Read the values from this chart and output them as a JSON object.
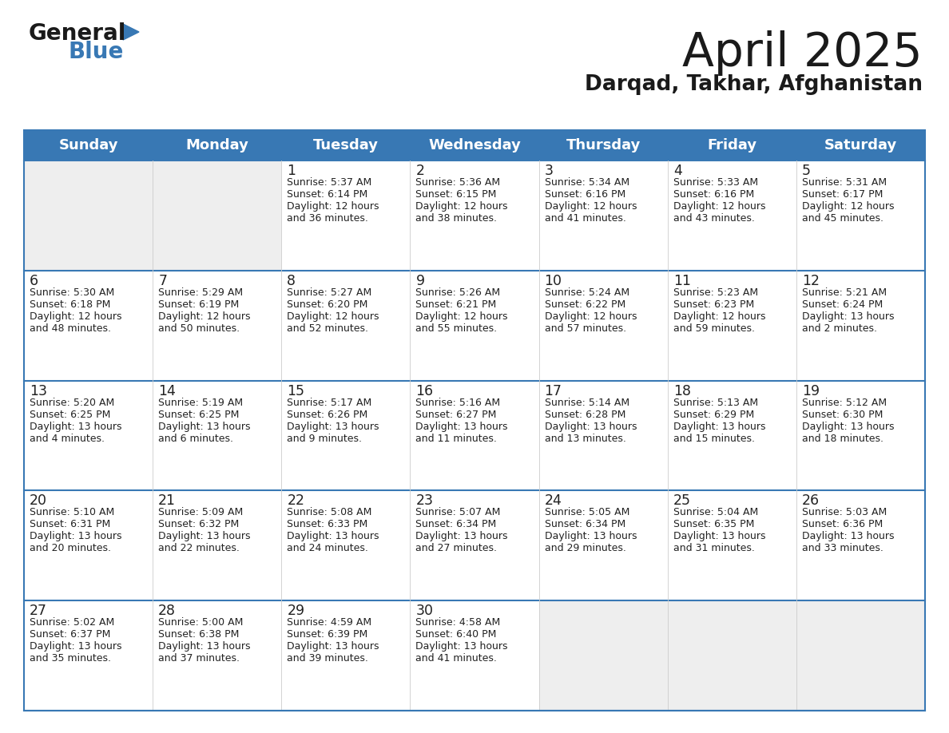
{
  "title": "April 2025",
  "subtitle": "Darqad, Takhar, Afghanistan",
  "header_color": "#3878b4",
  "header_text_color": "#ffffff",
  "cell_bg_white": "#ffffff",
  "cell_bg_gray": "#eeeeee",
  "border_color": "#3878b4",
  "text_color": "#222222",
  "logo_black": "#1a1a1a",
  "logo_blue": "#3878b4",
  "days_of_week": [
    "Sunday",
    "Monday",
    "Tuesday",
    "Wednesday",
    "Thursday",
    "Friday",
    "Saturday"
  ],
  "calendar": [
    [
      {
        "day": "",
        "sunrise": "",
        "sunset": "",
        "daylight1": "",
        "daylight2": ""
      },
      {
        "day": "",
        "sunrise": "",
        "sunset": "",
        "daylight1": "",
        "daylight2": ""
      },
      {
        "day": "1",
        "sunrise": "Sunrise: 5:37 AM",
        "sunset": "Sunset: 6:14 PM",
        "daylight1": "Daylight: 12 hours",
        "daylight2": "and 36 minutes."
      },
      {
        "day": "2",
        "sunrise": "Sunrise: 5:36 AM",
        "sunset": "Sunset: 6:15 PM",
        "daylight1": "Daylight: 12 hours",
        "daylight2": "and 38 minutes."
      },
      {
        "day": "3",
        "sunrise": "Sunrise: 5:34 AM",
        "sunset": "Sunset: 6:16 PM",
        "daylight1": "Daylight: 12 hours",
        "daylight2": "and 41 minutes."
      },
      {
        "day": "4",
        "sunrise": "Sunrise: 5:33 AM",
        "sunset": "Sunset: 6:16 PM",
        "daylight1": "Daylight: 12 hours",
        "daylight2": "and 43 minutes."
      },
      {
        "day": "5",
        "sunrise": "Sunrise: 5:31 AM",
        "sunset": "Sunset: 6:17 PM",
        "daylight1": "Daylight: 12 hours",
        "daylight2": "and 45 minutes."
      }
    ],
    [
      {
        "day": "6",
        "sunrise": "Sunrise: 5:30 AM",
        "sunset": "Sunset: 6:18 PM",
        "daylight1": "Daylight: 12 hours",
        "daylight2": "and 48 minutes."
      },
      {
        "day": "7",
        "sunrise": "Sunrise: 5:29 AM",
        "sunset": "Sunset: 6:19 PM",
        "daylight1": "Daylight: 12 hours",
        "daylight2": "and 50 minutes."
      },
      {
        "day": "8",
        "sunrise": "Sunrise: 5:27 AM",
        "sunset": "Sunset: 6:20 PM",
        "daylight1": "Daylight: 12 hours",
        "daylight2": "and 52 minutes."
      },
      {
        "day": "9",
        "sunrise": "Sunrise: 5:26 AM",
        "sunset": "Sunset: 6:21 PM",
        "daylight1": "Daylight: 12 hours",
        "daylight2": "and 55 minutes."
      },
      {
        "day": "10",
        "sunrise": "Sunrise: 5:24 AM",
        "sunset": "Sunset: 6:22 PM",
        "daylight1": "Daylight: 12 hours",
        "daylight2": "and 57 minutes."
      },
      {
        "day": "11",
        "sunrise": "Sunrise: 5:23 AM",
        "sunset": "Sunset: 6:23 PM",
        "daylight1": "Daylight: 12 hours",
        "daylight2": "and 59 minutes."
      },
      {
        "day": "12",
        "sunrise": "Sunrise: 5:21 AM",
        "sunset": "Sunset: 6:24 PM",
        "daylight1": "Daylight: 13 hours",
        "daylight2": "and 2 minutes."
      }
    ],
    [
      {
        "day": "13",
        "sunrise": "Sunrise: 5:20 AM",
        "sunset": "Sunset: 6:25 PM",
        "daylight1": "Daylight: 13 hours",
        "daylight2": "and 4 minutes."
      },
      {
        "day": "14",
        "sunrise": "Sunrise: 5:19 AM",
        "sunset": "Sunset: 6:25 PM",
        "daylight1": "Daylight: 13 hours",
        "daylight2": "and 6 minutes."
      },
      {
        "day": "15",
        "sunrise": "Sunrise: 5:17 AM",
        "sunset": "Sunset: 6:26 PM",
        "daylight1": "Daylight: 13 hours",
        "daylight2": "and 9 minutes."
      },
      {
        "day": "16",
        "sunrise": "Sunrise: 5:16 AM",
        "sunset": "Sunset: 6:27 PM",
        "daylight1": "Daylight: 13 hours",
        "daylight2": "and 11 minutes."
      },
      {
        "day": "17",
        "sunrise": "Sunrise: 5:14 AM",
        "sunset": "Sunset: 6:28 PM",
        "daylight1": "Daylight: 13 hours",
        "daylight2": "and 13 minutes."
      },
      {
        "day": "18",
        "sunrise": "Sunrise: 5:13 AM",
        "sunset": "Sunset: 6:29 PM",
        "daylight1": "Daylight: 13 hours",
        "daylight2": "and 15 minutes."
      },
      {
        "day": "19",
        "sunrise": "Sunrise: 5:12 AM",
        "sunset": "Sunset: 6:30 PM",
        "daylight1": "Daylight: 13 hours",
        "daylight2": "and 18 minutes."
      }
    ],
    [
      {
        "day": "20",
        "sunrise": "Sunrise: 5:10 AM",
        "sunset": "Sunset: 6:31 PM",
        "daylight1": "Daylight: 13 hours",
        "daylight2": "and 20 minutes."
      },
      {
        "day": "21",
        "sunrise": "Sunrise: 5:09 AM",
        "sunset": "Sunset: 6:32 PM",
        "daylight1": "Daylight: 13 hours",
        "daylight2": "and 22 minutes."
      },
      {
        "day": "22",
        "sunrise": "Sunrise: 5:08 AM",
        "sunset": "Sunset: 6:33 PM",
        "daylight1": "Daylight: 13 hours",
        "daylight2": "and 24 minutes."
      },
      {
        "day": "23",
        "sunrise": "Sunrise: 5:07 AM",
        "sunset": "Sunset: 6:34 PM",
        "daylight1": "Daylight: 13 hours",
        "daylight2": "and 27 minutes."
      },
      {
        "day": "24",
        "sunrise": "Sunrise: 5:05 AM",
        "sunset": "Sunset: 6:34 PM",
        "daylight1": "Daylight: 13 hours",
        "daylight2": "and 29 minutes."
      },
      {
        "day": "25",
        "sunrise": "Sunrise: 5:04 AM",
        "sunset": "Sunset: 6:35 PM",
        "daylight1": "Daylight: 13 hours",
        "daylight2": "and 31 minutes."
      },
      {
        "day": "26",
        "sunrise": "Sunrise: 5:03 AM",
        "sunset": "Sunset: 6:36 PM",
        "daylight1": "Daylight: 13 hours",
        "daylight2": "and 33 minutes."
      }
    ],
    [
      {
        "day": "27",
        "sunrise": "Sunrise: 5:02 AM",
        "sunset": "Sunset: 6:37 PM",
        "daylight1": "Daylight: 13 hours",
        "daylight2": "and 35 minutes."
      },
      {
        "day": "28",
        "sunrise": "Sunrise: 5:00 AM",
        "sunset": "Sunset: 6:38 PM",
        "daylight1": "Daylight: 13 hours",
        "daylight2": "and 37 minutes."
      },
      {
        "day": "29",
        "sunrise": "Sunrise: 4:59 AM",
        "sunset": "Sunset: 6:39 PM",
        "daylight1": "Daylight: 13 hours",
        "daylight2": "and 39 minutes."
      },
      {
        "day": "30",
        "sunrise": "Sunrise: 4:58 AM",
        "sunset": "Sunset: 6:40 PM",
        "daylight1": "Daylight: 13 hours",
        "daylight2": "and 41 minutes."
      },
      {
        "day": "",
        "sunrise": "",
        "sunset": "",
        "daylight1": "",
        "daylight2": ""
      },
      {
        "day": "",
        "sunrise": "",
        "sunset": "",
        "daylight1": "",
        "daylight2": ""
      },
      {
        "day": "",
        "sunrise": "",
        "sunset": "",
        "daylight1": "",
        "daylight2": ""
      }
    ]
  ]
}
